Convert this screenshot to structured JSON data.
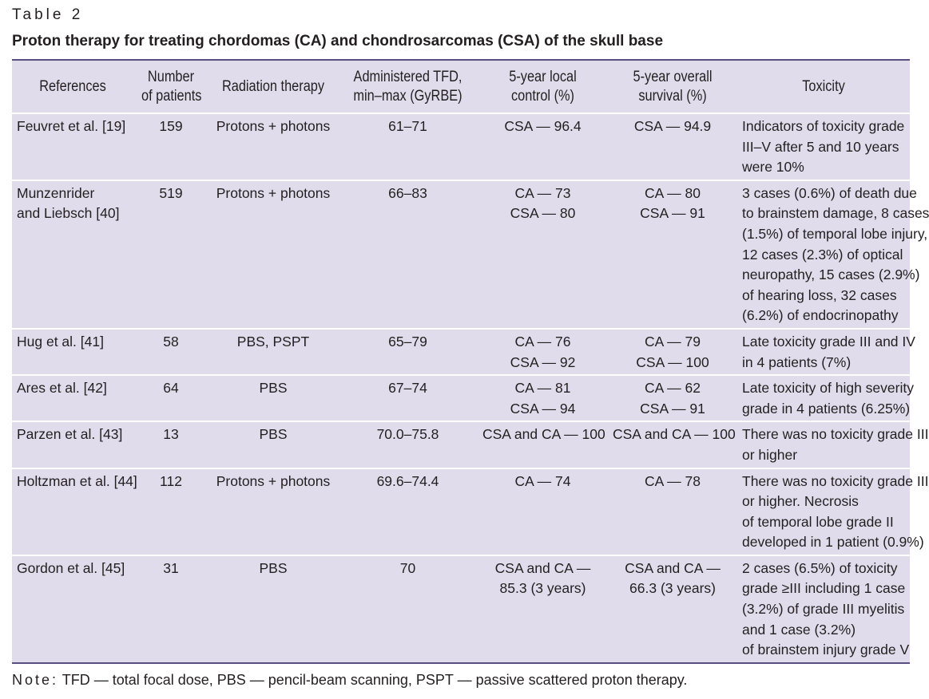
{
  "table_label": "Table 2",
  "title": "Proton therapy for treating chordomas (CA) and chondrosarcomas (CSA) of the skull base",
  "headers": [
    [
      "References"
    ],
    [
      "Number",
      "of patients"
    ],
    [
      "Radiation therapy"
    ],
    [
      "Administered TFD,",
      "min–max (GyRBE)"
    ],
    [
      "5-year local",
      "control (%)"
    ],
    [
      "5-year overall",
      "survival (%)"
    ],
    [
      "Toxicity"
    ]
  ],
  "rows": [
    {
      "reference": [
        "Feuvret et al. [19]"
      ],
      "patients": [
        "159"
      ],
      "therapy": [
        "Protons + photons"
      ],
      "tfd": [
        "61–71"
      ],
      "local_control": [
        "CSA — 96.4"
      ],
      "survival": [
        "CSA — 94.9"
      ],
      "toxicity": [
        "Indicators of toxicity grade",
        "III–V after 5 and 10 years",
        "were 10%"
      ]
    },
    {
      "reference": [
        "Munzenrider",
        "and Liebsch [40]"
      ],
      "patients": [
        "519"
      ],
      "therapy": [
        "Protons + photons"
      ],
      "tfd": [
        "66–83"
      ],
      "local_control": [
        "CA — 73",
        "CSA — 80"
      ],
      "survival": [
        "CA — 80",
        "CSA — 91"
      ],
      "toxicity": [
        "3 cases (0.6%) of death due",
        "to brainstem damage, 8 cases",
        "(1.5%) of temporal lobe injury,",
        "12 cases (2.3%) of optical",
        "neuropathy, 15 cases (2.9%)",
        "of hearing loss, 32 cases",
        "(6.2%) of endocrinopathy"
      ]
    },
    {
      "reference": [
        "Hug et al. [41]"
      ],
      "patients": [
        "58"
      ],
      "therapy": [
        "PBS, PSPT"
      ],
      "tfd": [
        "65–79"
      ],
      "local_control": [
        "CA — 76",
        "CSA — 92"
      ],
      "survival": [
        "CA — 79",
        "CSA — 100"
      ],
      "toxicity": [
        "Late toxicity grade III and IV",
        "in 4 patients (7%)"
      ]
    },
    {
      "reference": [
        "Ares et al. [42]"
      ],
      "patients": [
        "64"
      ],
      "therapy": [
        "PBS"
      ],
      "tfd": [
        "67–74"
      ],
      "local_control": [
        "CA — 81",
        "CSA — 94"
      ],
      "survival": [
        "CA — 62",
        "CSA — 91"
      ],
      "toxicity": [
        "Late toxicity of high severity",
        "grade in 4 patients (6.25%)"
      ]
    },
    {
      "reference": [
        "Parzen et al. [43]"
      ],
      "patients": [
        "13"
      ],
      "therapy": [
        "PBS"
      ],
      "tfd": [
        "70.0–75.8"
      ],
      "local_control": [
        "CSA and CA — 100"
      ],
      "survival": [
        "CSA and CA — 100"
      ],
      "toxicity": [
        "There was no toxicity grade III",
        "or higher"
      ]
    },
    {
      "reference": [
        "Holtzman et al. [44]"
      ],
      "patients": [
        "112"
      ],
      "therapy": [
        "Protons + photons"
      ],
      "tfd": [
        "69.6–74.4"
      ],
      "local_control": [
        "CA — 74"
      ],
      "survival": [
        "CA — 78"
      ],
      "toxicity": [
        "There was no toxicity grade III",
        "or higher. Necrosis",
        "of temporal lobe grade II",
        "developed in 1 patient (0.9%)"
      ]
    },
    {
      "reference": [
        "Gordon et al. [45]"
      ],
      "patients": [
        "31"
      ],
      "therapy": [
        "PBS"
      ],
      "tfd": [
        "70"
      ],
      "local_control": [
        "CSA and CA —",
        "85.3 (3 years)"
      ],
      "survival": [
        "CSA and CA —",
        "66.3 (3 years)"
      ],
      "toxicity": [
        "2 cases (6.5%) of toxicity",
        "grade ≥III including 1 case",
        "(3.2%) of grade III myelitis",
        "and 1 case (3.2%)",
        "of brainstem injury grade V"
      ]
    }
  ],
  "note": {
    "label": "Note:",
    "text": " TFD — total focal dose, PBS — pencil-beam scanning, PSPT — passive scattered proton therapy."
  },
  "colors": {
    "table_background": "#e1dceb",
    "rule": "#5a4d80",
    "row_separator": "#ffffff",
    "text": "#231f20"
  }
}
